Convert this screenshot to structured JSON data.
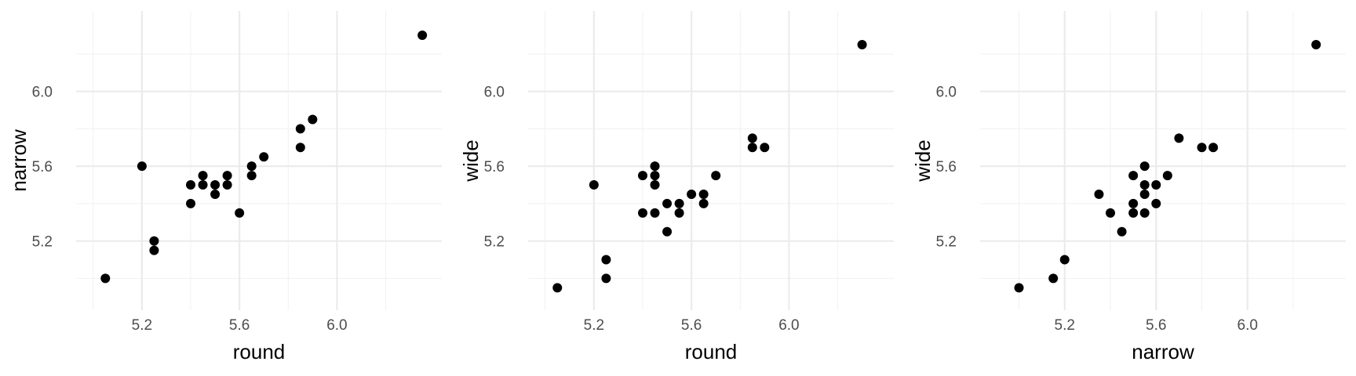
{
  "chart_data": [
    {
      "type": "scatter",
      "xlabel": "round",
      "ylabel": "narrow",
      "xlim": [
        4.93,
        6.43
      ],
      "ylim": [
        4.83,
        6.43
      ],
      "x_ticks": [
        5.2,
        5.6,
        6.0
      ],
      "y_ticks": [
        5.2,
        5.6,
        6.0
      ],
      "x_tick_labels": [
        "5.2",
        "5.6",
        "6.0"
      ],
      "y_tick_labels": [
        "5.2",
        "5.6",
        "6.0"
      ],
      "grid": true,
      "points": [
        [
          5.05,
          5.0
        ],
        [
          5.2,
          5.6
        ],
        [
          5.25,
          5.2
        ],
        [
          5.25,
          5.15
        ],
        [
          5.4,
          5.5
        ],
        [
          5.4,
          5.4
        ],
        [
          5.45,
          5.55
        ],
        [
          5.45,
          5.5
        ],
        [
          5.5,
          5.5
        ],
        [
          5.5,
          5.45
        ],
        [
          5.55,
          5.55
        ],
        [
          5.55,
          5.5
        ],
        [
          5.6,
          5.35
        ],
        [
          5.65,
          5.6
        ],
        [
          5.65,
          5.55
        ],
        [
          5.7,
          5.65
        ],
        [
          5.85,
          5.8
        ],
        [
          5.85,
          5.7
        ],
        [
          5.9,
          5.85
        ],
        [
          6.35,
          6.3
        ]
      ]
    },
    {
      "type": "scatter",
      "xlabel": "round",
      "ylabel": "wide",
      "xlim": [
        4.93,
        6.43
      ],
      "ylim": [
        4.83,
        6.43
      ],
      "x_ticks": [
        5.2,
        5.6,
        6.0
      ],
      "y_ticks": [
        5.2,
        5.6,
        6.0
      ],
      "x_tick_labels": [
        "5.2",
        "5.6",
        "6.0"
      ],
      "y_tick_labels": [
        "5.2",
        "5.6",
        "6.0"
      ],
      "grid": true,
      "points": [
        [
          5.05,
          4.95
        ],
        [
          5.2,
          5.5
        ],
        [
          5.25,
          5.1
        ],
        [
          5.25,
          5.0
        ],
        [
          5.4,
          5.55
        ],
        [
          5.4,
          5.35
        ],
        [
          5.45,
          5.6
        ],
        [
          5.45,
          5.55
        ],
        [
          5.45,
          5.5
        ],
        [
          5.45,
          5.35
        ],
        [
          5.5,
          5.4
        ],
        [
          5.5,
          5.25
        ],
        [
          5.55,
          5.4
        ],
        [
          5.55,
          5.35
        ],
        [
          5.6,
          5.45
        ],
        [
          5.65,
          5.45
        ],
        [
          5.65,
          5.4
        ],
        [
          5.7,
          5.55
        ],
        [
          5.85,
          5.75
        ],
        [
          5.85,
          5.7
        ],
        [
          5.9,
          5.7
        ],
        [
          6.3,
          6.25
        ]
      ]
    },
    {
      "type": "scatter",
      "xlabel": "narrow",
      "ylabel": "wide",
      "xlim": [
        4.83,
        6.43
      ],
      "ylim": [
        4.83,
        6.43
      ],
      "x_ticks": [
        5.2,
        5.6,
        6.0
      ],
      "y_ticks": [
        5.2,
        5.6,
        6.0
      ],
      "x_tick_labels": [
        "5.2",
        "5.6",
        "6.0"
      ],
      "y_tick_labels": [
        "5.2",
        "5.6",
        "6.0"
      ],
      "grid": true,
      "points": [
        [
          5.0,
          4.95
        ],
        [
          5.15,
          5.0
        ],
        [
          5.2,
          5.1
        ],
        [
          5.35,
          5.45
        ],
        [
          5.4,
          5.35
        ],
        [
          5.45,
          5.25
        ],
        [
          5.5,
          5.55
        ],
        [
          5.5,
          5.4
        ],
        [
          5.5,
          5.35
        ],
        [
          5.55,
          5.6
        ],
        [
          5.55,
          5.5
        ],
        [
          5.55,
          5.45
        ],
        [
          5.55,
          5.35
        ],
        [
          5.6,
          5.5
        ],
        [
          5.6,
          5.4
        ],
        [
          5.65,
          5.55
        ],
        [
          5.7,
          5.75
        ],
        [
          5.8,
          5.7
        ],
        [
          5.85,
          5.7
        ],
        [
          6.3,
          6.25
        ]
      ]
    }
  ]
}
